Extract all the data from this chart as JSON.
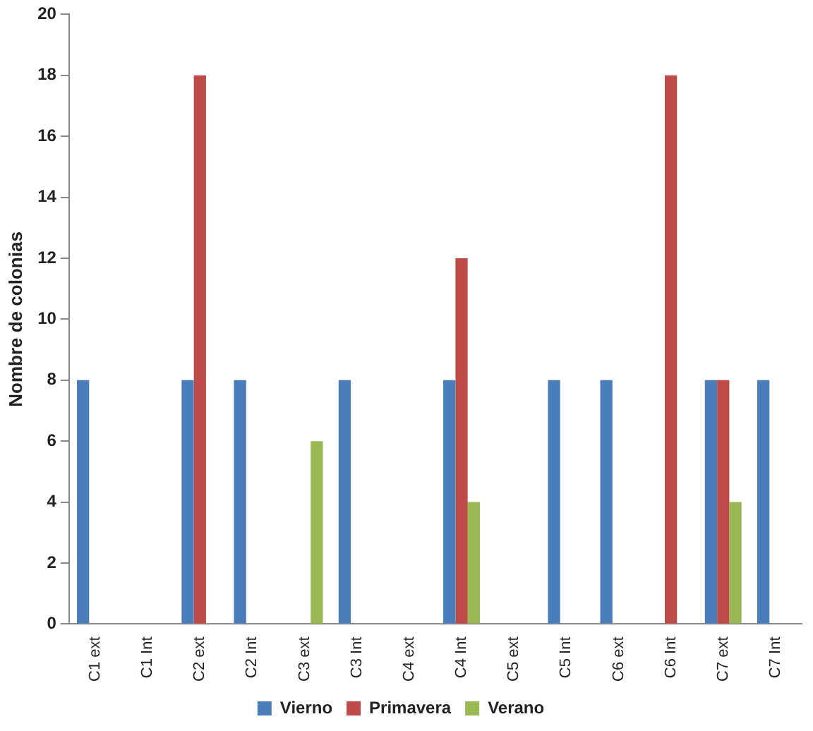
{
  "chart_data": {
    "type": "bar",
    "ylabel": "Nombre de colonias",
    "categories": [
      "C1 ext",
      "C1 Int",
      "C2 ext",
      "C2 Int",
      "C3 ext",
      "C3 Int",
      "C4 ext",
      "C4 Int",
      "C5 ext",
      "C5 Int",
      "C6 ext",
      "C6 Int",
      "C7 ext",
      "C7 Int"
    ],
    "series": [
      {
        "name": "Vierno",
        "color": "#4a7ebb",
        "values": [
          8,
          0,
          8,
          8,
          0,
          8,
          0,
          8,
          0,
          8,
          8,
          0,
          8,
          8
        ]
      },
      {
        "name": "Primavera",
        "color": "#be4b48",
        "values": [
          0,
          0,
          18,
          0,
          0,
          0,
          0,
          12,
          0,
          0,
          0,
          18,
          8,
          0
        ]
      },
      {
        "name": "Verano",
        "color": "#98b954",
        "values": [
          0,
          0,
          0,
          0,
          6,
          0,
          0,
          4,
          0,
          0,
          0,
          0,
          4,
          0
        ]
      }
    ],
    "ylim": [
      0,
      20
    ],
    "yticks": [
      0,
      2,
      4,
      6,
      8,
      10,
      12,
      14,
      16,
      18,
      20
    ],
    "grid": false,
    "legend": "bottom"
  }
}
